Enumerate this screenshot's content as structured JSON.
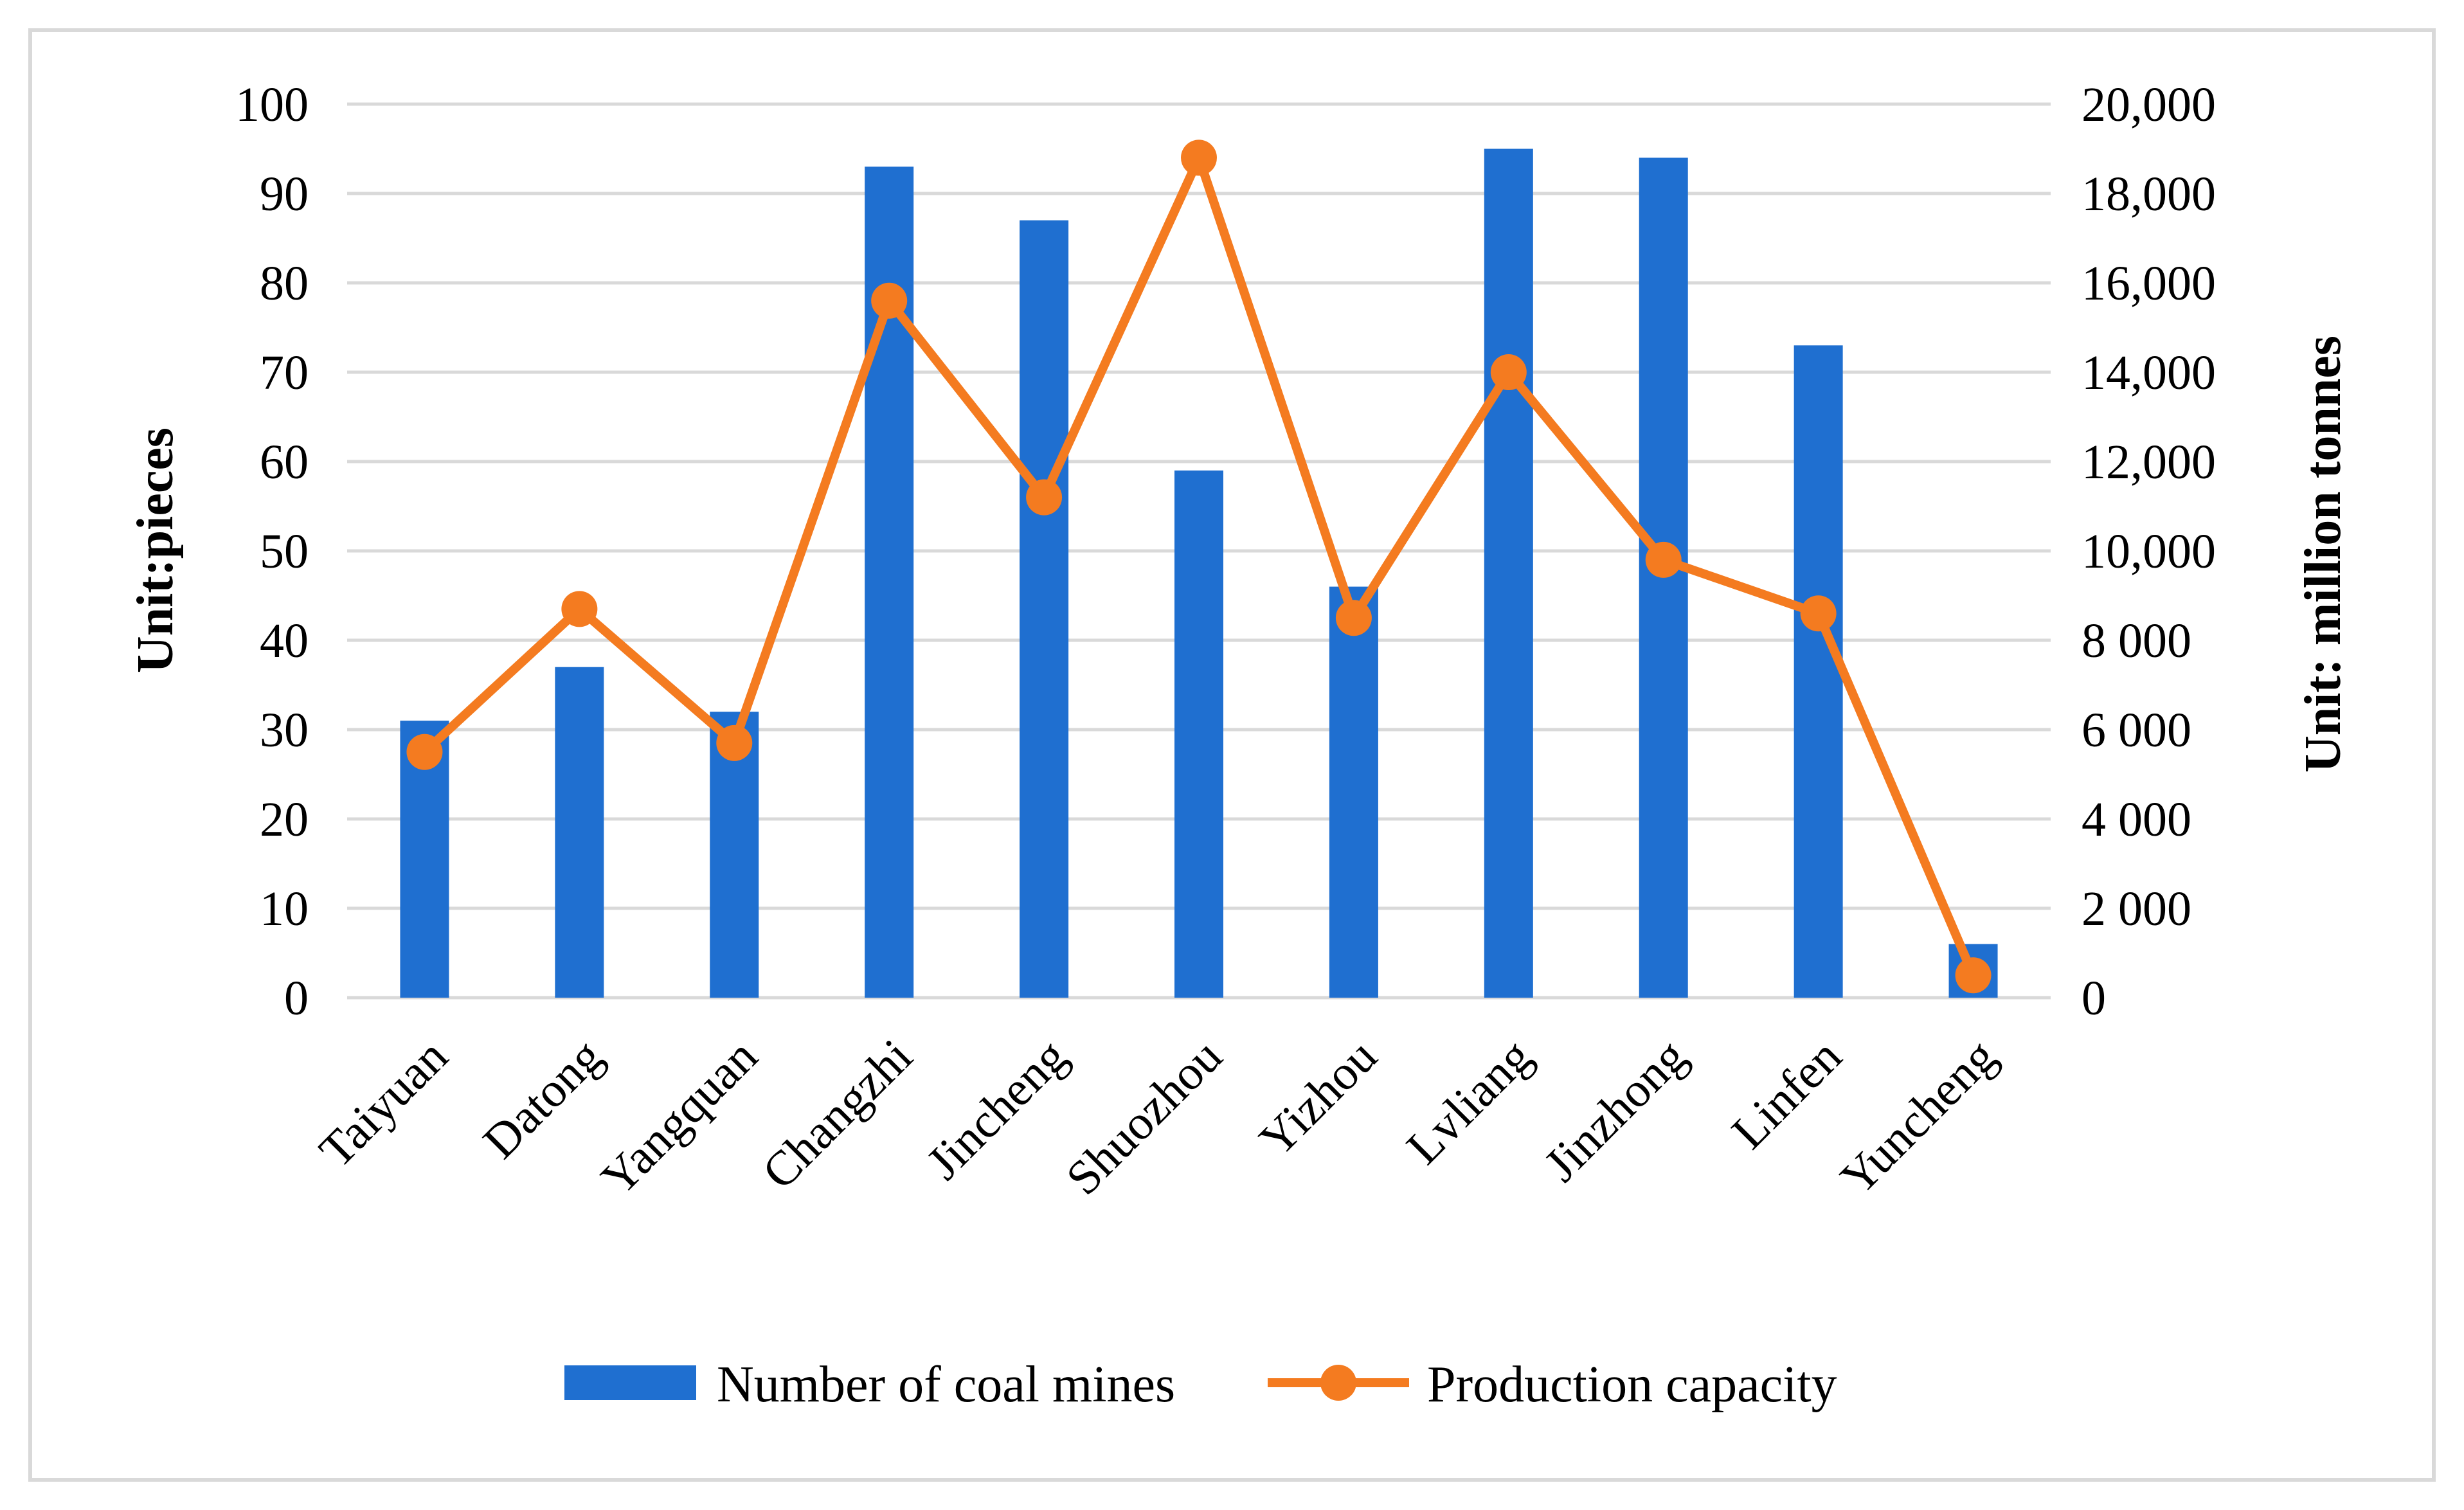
{
  "chart_data": {
    "type": "bar+line",
    "categories": [
      "Taiyuan",
      "Datong",
      "Yangquan",
      "Changzhi",
      "Jincheng",
      "Shuozhou",
      "Yizhou",
      "Lvliang",
      "Jinzhong",
      "Linfen",
      "Yuncheng"
    ],
    "series": [
      {
        "name": "Number of coal mines",
        "type": "bar",
        "axis": "left",
        "color": "#1f6fd0",
        "values": [
          31,
          37,
          32,
          93,
          87,
          59,
          46,
          95,
          94,
          73,
          6
        ]
      },
      {
        "name": "Production capacity",
        "type": "line",
        "axis": "right",
        "color": "#f47b20",
        "values": [
          5500,
          8700,
          5700,
          15600,
          11200,
          18800,
          8500,
          14000,
          9800,
          8600,
          500
        ]
      }
    ],
    "ylabel": "Unit:pieces",
    "y2label": "Unit: million tonnes",
    "ylim": [
      0,
      100
    ],
    "y2lim": [
      0,
      20000
    ],
    "yticks": [
      "0",
      "10",
      "20",
      "30",
      "40",
      "50",
      "60",
      "70",
      "80",
      "90",
      "100"
    ],
    "y2ticks": [
      "0",
      "2 000",
      "4 000",
      "6 000",
      "8 000",
      "10,000",
      "12,000",
      "14,000",
      "16,000",
      "18,000",
      "20,000"
    ],
    "grid": true,
    "legend_position": "bottom",
    "colors": {
      "grid": "#d9d9d9",
      "frame": "#d9d9d9"
    }
  }
}
